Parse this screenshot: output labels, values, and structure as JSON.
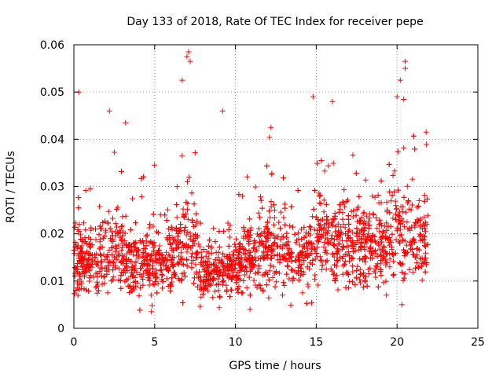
{
  "chart_data": {
    "type": "scatter",
    "title": "Day 133 of 2018, Rate Of TEC Index for receiver pepe",
    "xlabel": "GPS time / hours",
    "ylabel": "ROTI / TECUs",
    "xlim": [
      0,
      25
    ],
    "ylim": [
      0,
      0.06
    ],
    "xticks": [
      0,
      5,
      10,
      15,
      20,
      25
    ],
    "xtick_labels": [
      "0",
      "5",
      "10",
      "15",
      "20",
      "25"
    ],
    "yticks": [
      0,
      0.01,
      0.02,
      0.03,
      0.04,
      0.05,
      0.06
    ],
    "ytick_labels": [
      "0",
      "0.01",
      "0.02",
      "0.03",
      "0.04",
      "0.05",
      "0.06"
    ],
    "grid": true,
    "marker": "+",
    "color": "#ff0000",
    "x_data_range": [
      0,
      21.9
    ],
    "profile": [
      {
        "h": 0.0,
        "mean": 0.0135,
        "spread": 0.005
      },
      {
        "h": 1.0,
        "mean": 0.0145,
        "spread": 0.006
      },
      {
        "h": 2.0,
        "mean": 0.016,
        "spread": 0.007
      },
      {
        "h": 3.0,
        "mean": 0.0165,
        "spread": 0.007
      },
      {
        "h": 4.0,
        "mean": 0.0135,
        "spread": 0.006
      },
      {
        "h": 5.0,
        "mean": 0.014,
        "spread": 0.006
      },
      {
        "h": 6.0,
        "mean": 0.015,
        "spread": 0.006
      },
      {
        "h": 7.0,
        "mean": 0.02,
        "spread": 0.01
      },
      {
        "h": 8.0,
        "mean": 0.012,
        "spread": 0.004
      },
      {
        "h": 9.0,
        "mean": 0.012,
        "spread": 0.004
      },
      {
        "h": 10.0,
        "mean": 0.013,
        "spread": 0.005
      },
      {
        "h": 11.0,
        "mean": 0.0155,
        "spread": 0.006
      },
      {
        "h": 12.0,
        "mean": 0.017,
        "spread": 0.007
      },
      {
        "h": 13.0,
        "mean": 0.0165,
        "spread": 0.006
      },
      {
        "h": 14.0,
        "mean": 0.015,
        "spread": 0.006
      },
      {
        "h": 15.0,
        "mean": 0.019,
        "spread": 0.008
      },
      {
        "h": 16.0,
        "mean": 0.019,
        "spread": 0.008
      },
      {
        "h": 17.0,
        "mean": 0.018,
        "spread": 0.008
      },
      {
        "h": 18.0,
        "mean": 0.017,
        "spread": 0.007
      },
      {
        "h": 19.0,
        "mean": 0.0175,
        "spread": 0.007
      },
      {
        "h": 20.0,
        "mean": 0.02,
        "spread": 0.009
      },
      {
        "h": 21.0,
        "mean": 0.019,
        "spread": 0.008
      },
      {
        "h": 21.9,
        "mean": 0.018,
        "spread": 0.007
      }
    ],
    "notable_points": [
      {
        "x": 0.3,
        "y": 0.05
      },
      {
        "x": 2.2,
        "y": 0.046
      },
      {
        "x": 3.2,
        "y": 0.0435
      },
      {
        "x": 7.0,
        "y": 0.0575
      },
      {
        "x": 7.1,
        "y": 0.0585
      },
      {
        "x": 7.2,
        "y": 0.0565
      },
      {
        "x": 6.7,
        "y": 0.0525
      },
      {
        "x": 9.2,
        "y": 0.046
      },
      {
        "x": 12.2,
        "y": 0.0425
      },
      {
        "x": 14.8,
        "y": 0.049
      },
      {
        "x": 16.0,
        "y": 0.048
      },
      {
        "x": 20.2,
        "y": 0.0525
      },
      {
        "x": 20.5,
        "y": 0.0565
      },
      {
        "x": 20.5,
        "y": 0.055
      },
      {
        "x": 20.0,
        "y": 0.049
      },
      {
        "x": 21.8,
        "y": 0.0415
      },
      {
        "x": 4.8,
        "y": 0.0035
      },
      {
        "x": 10.9,
        "y": 0.004
      },
      {
        "x": 20.3,
        "y": 0.005
      }
    ]
  }
}
